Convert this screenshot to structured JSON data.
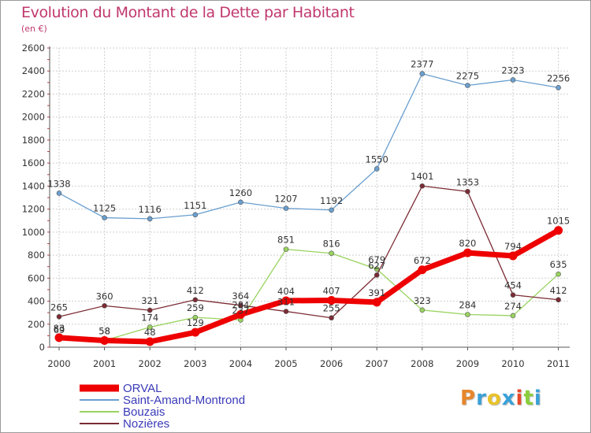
{
  "title": "Evolution du Montant de la Dette par Habitant",
  "subtitle": "(en €)",
  "logo": "Proxiti",
  "logo_colors": [
    "#e8862a",
    "#3aa0d8",
    "#e8c22a",
    "#3aa0d8",
    "#e84a2a",
    "#8acd3a",
    "#3aa0d8"
  ],
  "chart_data": {
    "type": "line",
    "x": [
      "2000",
      "2001",
      "2002",
      "2003",
      "2004",
      "2005",
      "2006",
      "2007",
      "2008",
      "2009",
      "2010",
      "2011"
    ],
    "ylim": [
      0,
      2600
    ],
    "yticks": [
      "0",
      "200",
      "400",
      "600",
      "800",
      "1000",
      "1200",
      "1400",
      "1600",
      "1800",
      "2000",
      "2200",
      "2400",
      "2600"
    ],
    "ytick_values": [
      0,
      200,
      400,
      600,
      800,
      1000,
      1200,
      1400,
      1600,
      1800,
      2000,
      2200,
      2400,
      2600
    ],
    "grid": true,
    "legend_position": "bottom-left",
    "series": [
      {
        "name": "Saint-Amand-Montrond",
        "color": "#6a9fcf",
        "values": [
          1338,
          1125,
          1116,
          1151,
          1260,
          1207,
          1192,
          1550,
          2377,
          2275,
          2323,
          2256
        ]
      },
      {
        "name": "Bouzais",
        "color": "#99d35f",
        "values": [
          69,
          58,
          174,
          259,
          237,
          851,
          816,
          679,
          323,
          284,
          274,
          635
        ]
      },
      {
        "name": "Nozières",
        "color": "#7b2b34",
        "values": [
          265,
          360,
          321,
          412,
          364,
          311,
          255,
          627,
          1401,
          1353,
          454,
          412
        ]
      },
      {
        "name": "ORVAL",
        "color": "#ee0000",
        "values": [
          83,
          58,
          48,
          129,
          284,
          404,
          407,
          391,
          672,
          820,
          794,
          1015
        ]
      }
    ],
    "labels": {
      "Saint-Amand-Montrond": [
        "1338",
        "1125",
        "1116",
        "1151",
        "1260",
        "1207",
        "1192",
        "1550",
        "2377",
        "2275",
        "2323",
        "2256"
      ],
      "Bouzais": [
        "69",
        "58",
        "174",
        "259",
        "237",
        "851",
        "816",
        "679",
        "323",
        "284",
        "274",
        "635"
      ],
      "Nozières": [
        "265",
        "360",
        "321",
        "412",
        "364",
        "311",
        "255",
        "627",
        "1401",
        "1353",
        "454",
        "412"
      ],
      "ORVAL": [
        "83",
        "58",
        "48",
        "129",
        "284",
        "404",
        "407",
        "391",
        "672",
        "820",
        "794",
        "1015"
      ]
    },
    "legend": [
      "ORVAL",
      "Saint-Amand-Montrond",
      "Bouzais",
      "Nozières"
    ]
  }
}
